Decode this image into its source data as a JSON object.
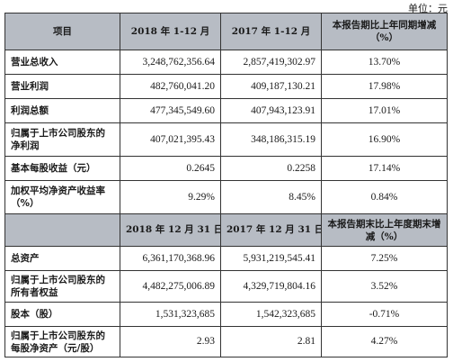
{
  "unit_label": "单位：元",
  "section1": {
    "headers": [
      "项目",
      "2018 年 1-12 月",
      "2017 年 1-12 月",
      "本报告期比上年同期增减（%）"
    ],
    "rows": [
      {
        "label": "营业总收入",
        "v1": "3,248,762,356.64",
        "v2": "2,857,419,302.97",
        "pct": "13.70%"
      },
      {
        "label": "营业利润",
        "v1": "482,760,041.20",
        "v2": "409,187,130.21",
        "pct": "17.98%"
      },
      {
        "label": "利润总额",
        "v1": "477,345,549.60",
        "v2": "407,943,123.91",
        "pct": "17.01%"
      },
      {
        "label": "归属于上市公司股东的净利润",
        "v1": "407,021,395.43",
        "v2": "348,186,315.19",
        "pct": "16.90%"
      },
      {
        "label": "基本每股收益（元）",
        "v1": "0.2645",
        "v2": "0.2258",
        "pct": "17.14%"
      },
      {
        "label": "加权平均净资产收益率（%）",
        "v1": "9.29%",
        "v2": "8.45%",
        "pct": "0.84%"
      }
    ]
  },
  "section2": {
    "headers": [
      "",
      "2018 年 12 月 31 日",
      "2017 年 12 月 31 日",
      "本报告期末比上年度期末增减（%）"
    ],
    "rows": [
      {
        "label": "总资产",
        "v1": "6,361,170,368.96",
        "v2": "5,931,219,545.41",
        "pct": "7.25%"
      },
      {
        "label": "归属于上市公司股东的所有者权益",
        "v1": "4,482,275,006.89",
        "v2": "4,329,719,804.16",
        "pct": "3.52%"
      },
      {
        "label": "股本（股）",
        "v1": "1,531,323,685",
        "v2": "1,542,323,685",
        "pct": "-0.71%"
      },
      {
        "label": "归属于上市公司股东的每股净资产（元/股）",
        "v1": "2.93",
        "v2": "2.81",
        "pct": "4.27%"
      }
    ]
  }
}
